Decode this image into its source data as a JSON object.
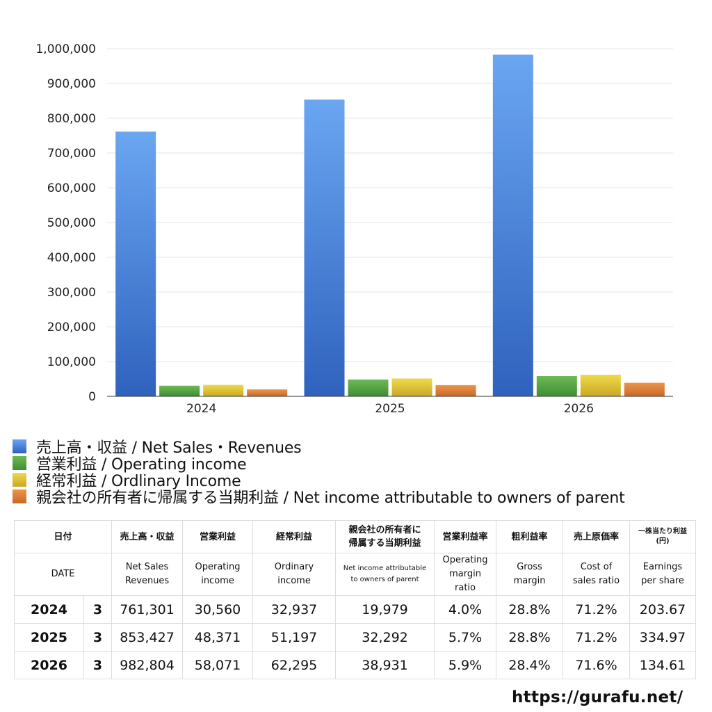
{
  "colors": {
    "net_sales": "#3f7fdc",
    "operating_income": "#5aa943",
    "ordinary_income": "#e0c534",
    "net_income": "#de7f35"
  },
  "chart_data": {
    "type": "bar",
    "categories": [
      "2024",
      "2025",
      "2026"
    ],
    "series": [
      {
        "name": "売上高・収益 / Net Sales・Revenues",
        "values": [
          761301,
          853427,
          982804
        ]
      },
      {
        "name": "営業利益 / Operating income",
        "values": [
          30560,
          48371,
          58071
        ]
      },
      {
        "name": "経常利益 / Ordlinary Income",
        "values": [
          32937,
          51197,
          62295
        ]
      },
      {
        "name": "親会社の所有者に帰属する当期利益 / Net income attributable to owners of parent",
        "values": [
          19979,
          32292,
          38931
        ]
      }
    ],
    "ylim": [
      0,
      1000000
    ],
    "yticks": [
      "0",
      "100,000",
      "200,000",
      "300,000",
      "400,000",
      "500,000",
      "600,000",
      "700,000",
      "800,000",
      "900,000",
      "1,000,000"
    ],
    "ytick_values": [
      0,
      100000,
      200000,
      300000,
      400000,
      500000,
      600000,
      700000,
      800000,
      900000,
      1000000
    ],
    "grid": true,
    "legend": "bottom"
  },
  "table": {
    "header_jp": {
      "date": "日付",
      "net_sales": "売上高・収益",
      "operating_income": "営業利益",
      "ordinary_income": "経常利益",
      "net_income_l1": "親会社の所有者に",
      "net_income_l2": "帰属する当期利益",
      "op_margin": "営業利益率",
      "gross_margin": "粗利益率",
      "cost_ratio": "売上原価率",
      "eps_l1": "一株当たり利益",
      "eps_l2": "(円)"
    },
    "header_en": {
      "date": "DATE",
      "net_sales_l1": "Net Sales",
      "net_sales_l2": "Revenues",
      "operating_income_l1": "Operating",
      "operating_income_l2": "income",
      "ordinary_income_l1": "Ordinary",
      "ordinary_income_l2": "income",
      "net_income_l1": "Net income attributable",
      "net_income_l2": "to owners of parent",
      "op_margin_l1": "Operating",
      "op_margin_l2": "margin",
      "op_margin_l3": "ratio",
      "gross_margin_l1": "Gross",
      "gross_margin_l2": "margin",
      "cost_ratio_l1": "Cost of",
      "cost_ratio_l2": "sales ratio",
      "eps_l1": "Earnings",
      "eps_l2": "per share"
    },
    "rows": [
      {
        "year": "2024",
        "month": "3",
        "net_sales": "761,301",
        "operating_income": "30,560",
        "ordinary_income": "32,937",
        "net_income": "19,979",
        "op_margin": "4.0%",
        "gross_margin": "28.8%",
        "cost_ratio": "71.2%",
        "eps": "203.67"
      },
      {
        "year": "2025",
        "month": "3",
        "net_sales": "853,427",
        "operating_income": "48,371",
        "ordinary_income": "51,197",
        "net_income": "32,292",
        "op_margin": "5.7%",
        "gross_margin": "28.8%",
        "cost_ratio": "71.2%",
        "eps": "334.97"
      },
      {
        "year": "2026",
        "month": "3",
        "net_sales": "982,804",
        "operating_income": "58,071",
        "ordinary_income": "62,295",
        "net_income": "38,931",
        "op_margin": "5.9%",
        "gross_margin": "28.4%",
        "cost_ratio": "71.6%",
        "eps": "134.61"
      }
    ]
  },
  "footer": {
    "url": "https://gurafu.net/"
  }
}
